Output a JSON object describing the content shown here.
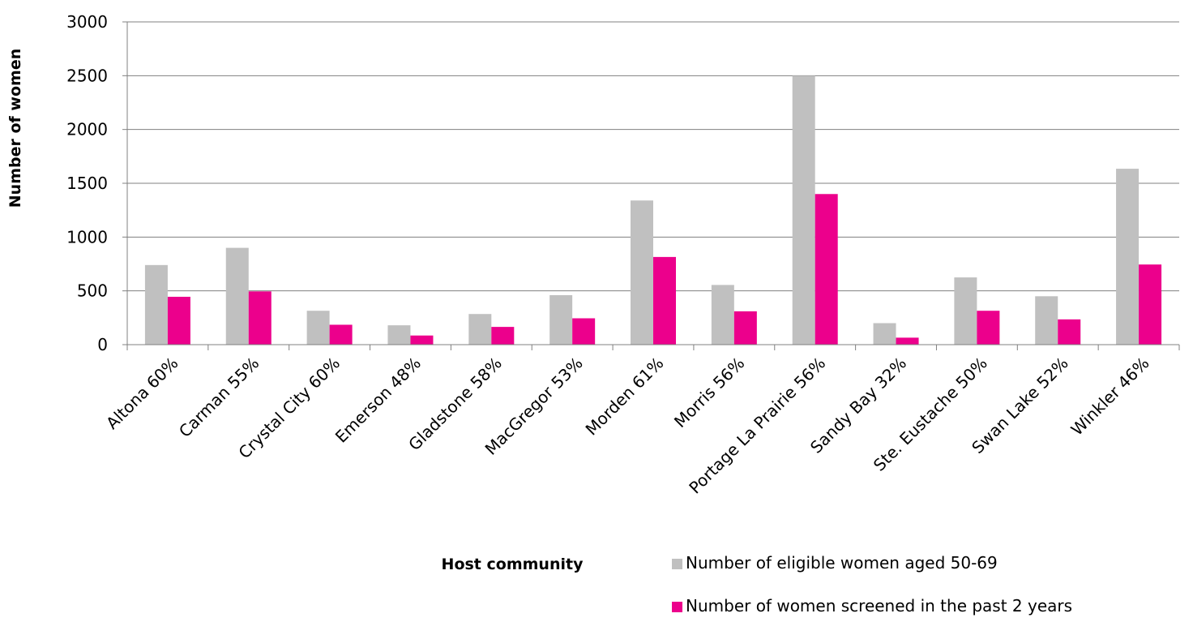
{
  "chart_data": {
    "type": "bar",
    "title": "",
    "xlabel": "Host community",
    "ylabel": "Number of women",
    "ylim": [
      0,
      3000
    ],
    "yticks": [
      0,
      500,
      1000,
      1500,
      2000,
      2500,
      3000
    ],
    "grid": true,
    "legend_position": "bottom-right",
    "categories": [
      "Altona 60%",
      "Carman 55%",
      "Crystal City 60%",
      "Emerson 48%",
      "Gladstone 58%",
      "MacGregor 53%",
      "Morden 61%",
      "Morris 56%",
      "Portage La Prairie 56%",
      "Sandy Bay 32%",
      "Ste. Eustache 50%",
      "Swan Lake 52%",
      "Winkler 46%"
    ],
    "series": [
      {
        "name": "Number of eligible women aged 50-69",
        "color": "#c0c0c0",
        "values": [
          740,
          900,
          315,
          180,
          285,
          460,
          1340,
          555,
          2500,
          200,
          625,
          450,
          1635
        ]
      },
      {
        "name": "Number of women screened in the past 2 years",
        "color": "#ec008c",
        "values": [
          445,
          495,
          185,
          85,
          165,
          245,
          815,
          310,
          1400,
          65,
          315,
          235,
          745
        ]
      }
    ]
  }
}
